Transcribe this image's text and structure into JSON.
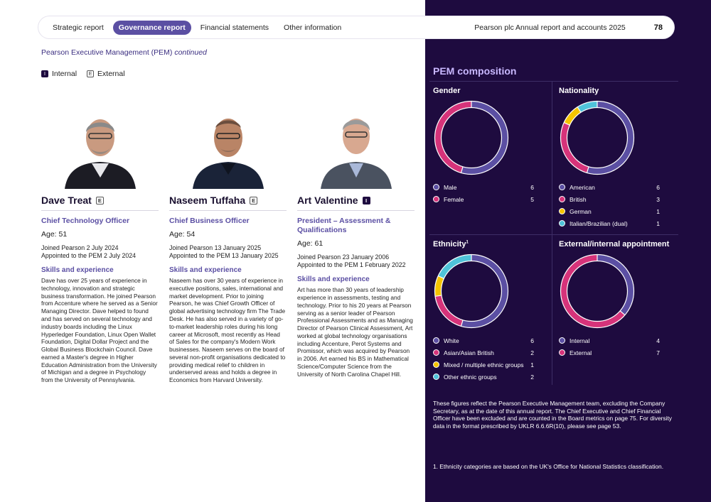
{
  "nav": {
    "items": [
      "Strategic report",
      "Governance report",
      "Financial statements",
      "Other information"
    ],
    "active_index": 1,
    "report_title": "Pearson plc Annual report and accounts 2025",
    "page_number": "78"
  },
  "section": {
    "title": "Pearson Executive Management (PEM)",
    "continued": "continued"
  },
  "key": {
    "internal_badge": "I",
    "internal_label": "Internal",
    "external_badge": "E",
    "external_label": "External"
  },
  "people": [
    {
      "name": "Dave Treat",
      "badge": "E",
      "role": "Chief Technology Officer",
      "age": "Age: 51",
      "joined_1": "Joined Pearson 2 July 2024",
      "joined_2": "Appointed to the PEM 2 July 2024",
      "skills_heading": "Skills and experience",
      "bio": "Dave has over 25 years of experience in technology, innovation and strategic business transformation. He joined Pearson from Accenture where he served as a Senior Managing Director. Dave helped to found and has served on several technology and industry boards including the Linux Hyperledger Foundation, Linux Open Wallet Foundation, Digital Dollar Project and the Global Business Blockchain Council. Dave earned a Master's degree in Higher Education Administration from the University of Michigan and a degree in Psychology from the University of Pennsylvania."
    },
    {
      "name": "Naseem Tuffaha",
      "badge": "E",
      "role": "Chief Business Officer",
      "age": "Age: 54",
      "joined_1": "Joined Pearson 13 January 2025",
      "joined_2": "Appointed to the PEM 13 January 2025",
      "skills_heading": "Skills and experience",
      "bio": "Naseem has over 30 years of experience in executive positions, sales, international and market development. Prior to joining Pearson, he was Chief Growth Officer of global advertising technology firm The Trade Desk. He has also served in a variety of go-to-market leadership roles during his long career at Microsoft, most recently as Head of Sales for the company's Modern Work businesses. Naseem serves on the board of several non-profit organisations dedicated to providing medical relief to children in underserved areas and holds a degree in Economics from Harvard University."
    },
    {
      "name": "Art Valentine",
      "badge": "I",
      "role": "President – Assessment & Qualifications",
      "age": "Age: 61",
      "joined_1": "Joined Pearson 23 January 2006",
      "joined_2": "Appointed to the PEM 1 February 2022",
      "skills_heading": "Skills and experience",
      "bio": "Art has more than 30 years of leadership experience in assessments, testing and technology. Prior to his 20 years at Pearson serving as a senior leader of Pearson Professional Assessments and as Managing Director of Pearson Clinical Assessment, Art worked at global technology organisations including Accenture, Perot Systems and Promissor, which was acquired by Pearson in 2006. Art earned his BS in Mathematical Science/Computer Science from the University of North Carolina Chapel Hill."
    }
  ],
  "pem": {
    "title": "PEM composition",
    "colors": {
      "purple": "#5b4fa3",
      "pink": "#d6337a",
      "yellow": "#f5c400",
      "teal": "#4fc3d9"
    },
    "footnote_paragraph": "These figures reflect the Pearson Executive Management team, excluding the Company Secretary, as at the date of this annual report. The Chief Executive and Chief Financial Officer have been excluded and are counted in the Board metrics on page 75. For diversity data in the format prescribed by UKLR 6.6.6R(10), please see page 53.",
    "footnote": "1. Ethnicity categories are based on the UK's Office for National Statistics classification."
  },
  "chart_data": [
    {
      "type": "pie",
      "title": "Gender",
      "labels": [
        "Male",
        "Female"
      ],
      "values": [
        6,
        5
      ],
      "colors": [
        "#5b4fa3",
        "#d6337a"
      ]
    },
    {
      "type": "pie",
      "title": "Nationality",
      "labels": [
        "American",
        "British",
        "German",
        "Italian/Brazilian (dual)"
      ],
      "values": [
        6,
        3,
        1,
        1
      ],
      "colors": [
        "#5b4fa3",
        "#d6337a",
        "#f5c400",
        "#4fc3d9"
      ]
    },
    {
      "type": "pie",
      "title": "Ethnicity",
      "title_sup": "1",
      "labels": [
        "White",
        "Asian/Asian British",
        "Mixed / multiple ethnic groups",
        "Other ethnic groups"
      ],
      "values": [
        6,
        2,
        1,
        2
      ],
      "colors": [
        "#5b4fa3",
        "#d6337a",
        "#f5c400",
        "#4fc3d9"
      ]
    },
    {
      "type": "pie",
      "title": "External/internal appointment",
      "labels": [
        "Internal",
        "External"
      ],
      "values": [
        4,
        7
      ],
      "colors": [
        "#5b4fa3",
        "#d6337a"
      ]
    }
  ]
}
